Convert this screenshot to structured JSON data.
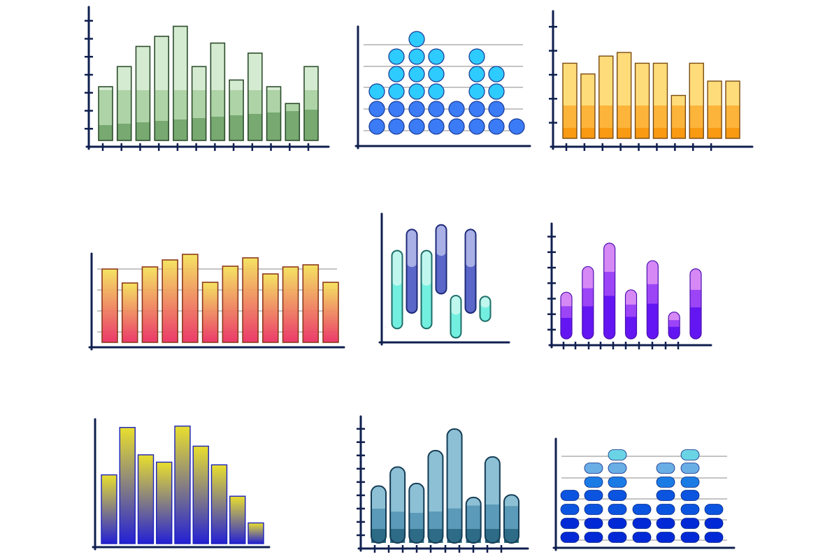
{
  "colors": {
    "axis": "#0f1f4f",
    "grid": "#8a8a8a"
  },
  "chart_data": [
    {
      "type": "bar",
      "style": "stacked-shade",
      "values": [
        8,
        11,
        14,
        15.5,
        17,
        11,
        14.5,
        9,
        13,
        8,
        5.5,
        11
      ],
      "ylim": [
        0,
        18
      ],
      "palette": {
        "top": "#d5ebd1",
        "mid": "#aed3a6",
        "bottom": "#77a971",
        "stroke": "#2d4d2d"
      }
    },
    {
      "type": "dot",
      "style": "dot-columns",
      "counts": [
        3,
        5,
        6,
        5,
        2,
        5,
        4,
        1
      ],
      "ylim": [
        0,
        6
      ],
      "grid": true,
      "palette": {
        "light": "#2ecbff",
        "dark": "#3b7bf5",
        "stroke": "#1c3f9a"
      }
    },
    {
      "type": "bar",
      "style": "two-tone",
      "values": [
        10.5,
        9,
        11.5,
        12,
        10.5,
        10.5,
        6,
        10.5,
        8,
        8
      ],
      "ylim": [
        0,
        12.5
      ],
      "palette": {
        "top": "#fedc7a",
        "mid": "#fcb43b",
        "bottom": "#f99a13",
        "stroke": "#7a4b10"
      }
    },
    {
      "type": "bar",
      "style": "gradient",
      "values": [
        10.5,
        8.5,
        10.8,
        11.8,
        12.6,
        8.6,
        10.9,
        12.1,
        9.8,
        10.8,
        11.1,
        8.6
      ],
      "ylim": [
        0,
        14
      ],
      "grid": true,
      "palette": {
        "top": "#f4e25a",
        "bottom": "#ea2f63",
        "stroke": "#8e3a1c"
      }
    },
    {
      "type": "range",
      "style": "floating-pills",
      "ranges": [
        [
          1.5,
          10
        ],
        [
          3.2,
          12.3
        ],
        [
          1.5,
          10
        ],
        [
          5.3,
          12.8
        ],
        [
          0.5,
          5.1
        ],
        [
          3.2,
          12.3
        ],
        [
          2.3,
          5
        ]
      ],
      "ylim": [
        0,
        14
      ],
      "palette": {
        "teal": "#73efe0",
        "tealLight": "#bff7ef",
        "tealStroke": "#1f6e68",
        "blue": "#5a67c9",
        "blueLight": "#a8b0e6",
        "blueStroke": "#1f2a78"
      }
    },
    {
      "type": "bar",
      "style": "pills",
      "values": [
        4,
        6.2,
        8.2,
        4.2,
        6.7,
        2.3,
        6
      ],
      "ylim": [
        0,
        8.5
      ],
      "palette": {
        "top": "#d689f5",
        "mid": "#9c45f7",
        "bottom": "#6316f1",
        "stroke": "#4b0fb0"
      }
    },
    {
      "type": "bar",
      "style": "gradient",
      "values": [
        10.3,
        17.4,
        13.3,
        12.2,
        17.6,
        14.6,
        11.8,
        7.1,
        3.1
      ],
      "ylim": [
        0,
        18
      ],
      "palette": {
        "top": "#e9df2e",
        "bottom": "#2320d5",
        "stroke": "#1d22bb"
      }
    },
    {
      "type": "bar",
      "style": "wave-pills",
      "values": [
        4.5,
        6,
        4.7,
        7.3,
        9,
        3.6,
        6.8,
        3.8
      ],
      "ylim": [
        0,
        9.5
      ],
      "palette": {
        "top": "#8dc0d4",
        "mid": "#5b9ab8",
        "bottom": "#2d6b86",
        "stroke": "#143c55"
      }
    },
    {
      "type": "dot",
      "style": "oval-stacks",
      "counts": [
        4,
        6,
        7,
        3,
        6,
        7,
        3
      ],
      "ylim": [
        0,
        7
      ],
      "grid": true,
      "palette": {
        "c1": "#0229d6",
        "c2": "#0b54e0",
        "c3": "#1b7be5",
        "c4": "#6aaee6",
        "c5": "#6fc7e6",
        "c6": "#6ad4e5",
        "stroke": "#0b2a85"
      }
    }
  ]
}
